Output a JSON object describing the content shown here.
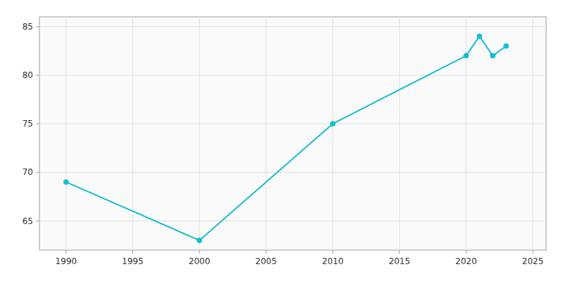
{
  "chart_data": {
    "type": "line",
    "x": [
      1990,
      2000,
      2010,
      2020,
      2021,
      2022,
      2023
    ],
    "values": [
      69,
      63,
      75,
      82,
      84,
      82,
      83
    ],
    "color": "#17BECF",
    "marker": "circle",
    "xlim": [
      1988,
      2026
    ],
    "ylim": [
      62,
      86
    ],
    "xticks": [
      1990,
      1995,
      2000,
      2005,
      2010,
      2015,
      2020,
      2025
    ],
    "yticks": [
      65,
      70,
      75,
      80,
      85
    ],
    "grid": true
  }
}
